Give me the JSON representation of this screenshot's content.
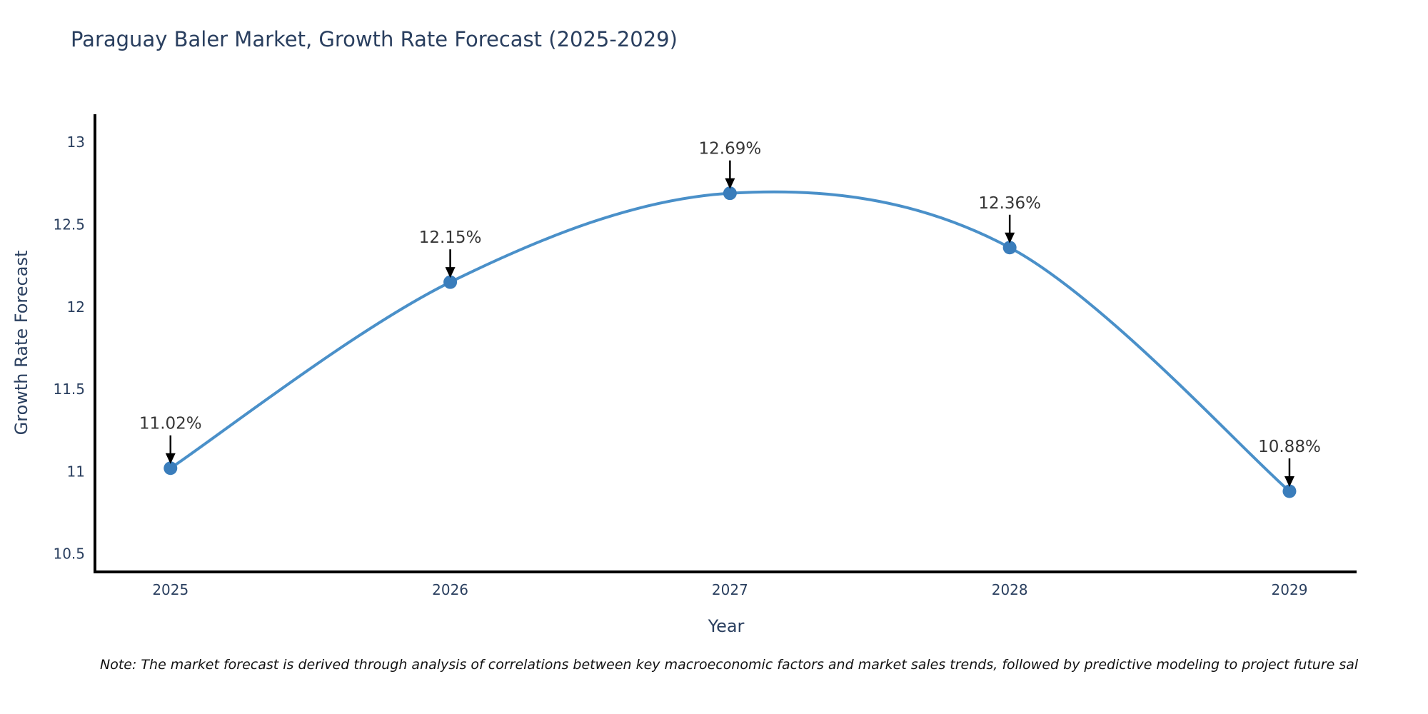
{
  "title": "Paraguay Baler Market, Growth Rate Forecast (2025-2029)",
  "note": "Note: The market forecast is derived through analysis of correlations between key macroeconomic factors and market sales trends, followed by predictive modeling to project future sal",
  "chart_data": {
    "type": "line",
    "title": "Paraguay Baler Market, Growth Rate Forecast (2025-2029)",
    "xlabel": "Year",
    "ylabel": "Growth Rate Forecast",
    "x": [
      2025,
      2026,
      2027,
      2028,
      2029
    ],
    "y": [
      11.02,
      12.15,
      12.69,
      12.36,
      10.88
    ],
    "point_labels": [
      "11.02%",
      "12.15%",
      "12.69%",
      "12.36%",
      "10.88%"
    ],
    "xticks": [
      2025,
      2026,
      2027,
      2028,
      2029
    ],
    "yticks": [
      10.5,
      11,
      11.5,
      12,
      12.5,
      13
    ],
    "xlim": [
      2024.73,
      2029.24
    ],
    "ylim": [
      10.39,
      13.17
    ],
    "grid": false,
    "legend": false,
    "line_shape": "spline",
    "colors": {
      "line": "#4a90c9",
      "marker": "#3a7dbb",
      "axis": "#000000",
      "tick_text": "#2a3f5f",
      "annotation_text": "#363636",
      "arrow": "#000000"
    }
  }
}
